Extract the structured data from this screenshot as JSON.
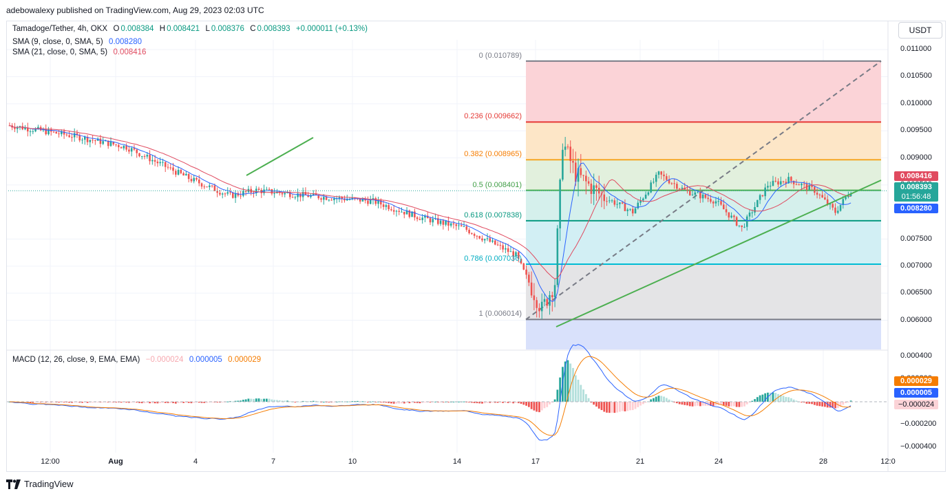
{
  "header": {
    "published": "adebowalexy published on TradingView.com, Aug 29, 2023 02:03 UTC"
  },
  "legend": {
    "symbol": "Tamadoge/Tether, 4h, OKX",
    "o_label": "O",
    "o_value": "0.008384",
    "h_label": "H",
    "h_value": "0.008421",
    "l_label": "L",
    "l_value": "0.008376",
    "c_label": "C",
    "c_value": "0.008393",
    "change": "+0.000011 (+0.13%)",
    "sma9_label": "SMA (9, close, 0, SMA, 5)",
    "sma9_value": "0.008280",
    "sma21_label": "SMA (21, close, 0, SMA, 5)",
    "sma21_value": "0.008416",
    "macd_label": "MACD (12, 26, close, 9, EMA, EMA)",
    "macd_hist": "−0.000024",
    "macd_line": "0.000005",
    "macd_signal": "0.000029"
  },
  "toolbar": {
    "currency_button": "USDT"
  },
  "colors": {
    "up": "#26a69a",
    "down": "#ef5350",
    "sma9": "#2962ff",
    "sma21": "#e04a5f",
    "macd_line": "#2962ff",
    "macd_signal": "#f57c00",
    "trend": "#4caf50"
  },
  "chart_data": {
    "type": "candlestick",
    "price_axis": {
      "ticks": [
        "0.011000",
        "0.010500",
        "0.010000",
        "0.009500",
        "0.009000",
        "0.008500",
        "0.007500",
        "0.007000",
        "0.006500",
        "0.006000"
      ],
      "range": [
        0.00546,
        0.01118
      ]
    },
    "macd_axis": {
      "ticks": [
        "0.000400",
        "0.000200",
        "−0.000200",
        "−0.000400"
      ],
      "range": [
        -0.00045,
        0.00045
      ]
    },
    "time_axis": [
      "12:00",
      "Aug",
      "4",
      "7",
      "10",
      "14",
      "17",
      "21",
      "24",
      "28",
      "12:0"
    ],
    "price_tags": {
      "sma21": "0.008416",
      "last": "0.008393",
      "countdown": "01:56:48",
      "sma9": "0.008280"
    },
    "macd_tags": {
      "signal": "0.000029",
      "line": "0.000005",
      "hist": "−0.000024"
    },
    "fibonacci": [
      {
        "level": "0",
        "price": 0.010789,
        "label": "0 (0.010789)",
        "line": "#787b86",
        "fill": "#fbd3d7",
        "label_color": "#787b86"
      },
      {
        "level": "0.236",
        "price": 0.009662,
        "label": "0.236 (0.009662)",
        "line": "#e53935",
        "fill": "#fde6c7",
        "label_color": "#e53935"
      },
      {
        "level": "0.382",
        "price": 0.008965,
        "label": "0.382 (0.008965)",
        "line": "#f5a623",
        "fill": "#e2f0dd",
        "label_color": "#f57c00"
      },
      {
        "level": "0.5",
        "price": 0.008401,
        "label": "0.5 (0.008401)",
        "line": "#4caf50",
        "fill": "#d5f0ec",
        "label_color": "#43a047"
      },
      {
        "level": "0.618",
        "price": 0.007838,
        "label": "0.618 (0.007838)",
        "line": "#089981",
        "fill": "#d2eff4",
        "label_color": "#089981"
      },
      {
        "level": "0.786",
        "price": 0.007036,
        "label": "0.786 (0.007036)",
        "line": "#00bcd4",
        "fill": "#e4e4e6",
        "label_color": "#00acc1"
      },
      {
        "level": "1",
        "price": 0.006014,
        "label": "1 (0.006014)",
        "line": "#787b86",
        "fill": "#d9e1fb",
        "label_color": "#787b86"
      }
    ]
  },
  "footer": {
    "brand": "TradingView"
  }
}
